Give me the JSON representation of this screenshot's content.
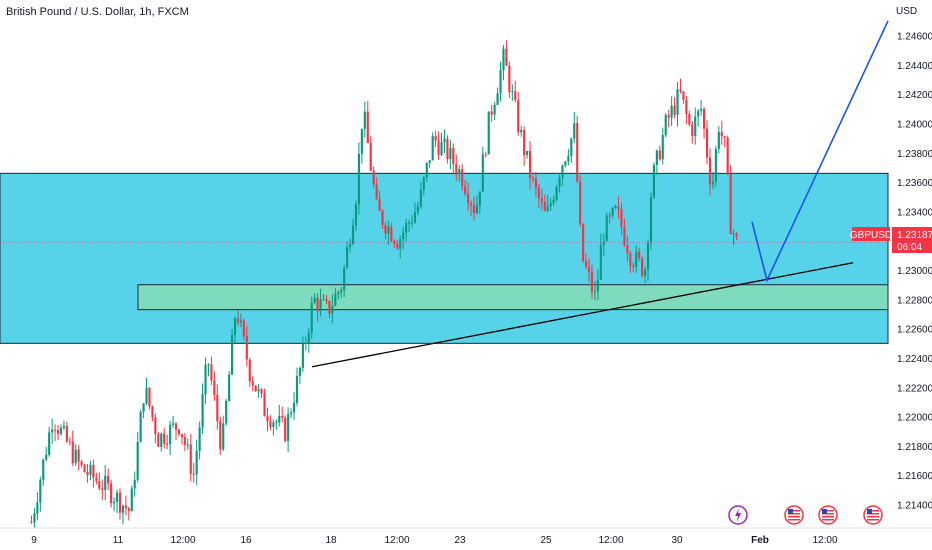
{
  "header": {
    "title": "British Pound / U.S. Dollar, 1h, FXCM"
  },
  "price_badge": {
    "symbol": "GBPUSD",
    "price": "1.23187",
    "countdown": "06:04",
    "color": "#f23645"
  },
  "colors": {
    "up": "#089981",
    "down": "#f23645",
    "zone_blue": "#56d3e8",
    "zone_green": "#7fdbbe",
    "trendline": "#000000",
    "projection": "#1e53e5"
  },
  "chart_data": {
    "type": "candlestick",
    "title": "British Pound / U.S. Dollar, 1h, FXCM",
    "currency": "USD",
    "ylim": [
      1.2124,
      1.2472
    ],
    "yticks": [
      "1.24600",
      "1.24400",
      "1.24200",
      "1.24000",
      "1.23800",
      "1.23600",
      "1.23400",
      "1.23200",
      "1.23000",
      "1.22800",
      "1.22600",
      "1.22400",
      "1.22200",
      "1.22000",
      "1.21800",
      "1.21600",
      "1.21400"
    ],
    "xticks": [
      "9",
      "11",
      "12:00",
      "16",
      "18",
      "12:00",
      "23",
      "25",
      "12:00",
      "30",
      "Feb",
      "12:00"
    ],
    "path": [
      [
        0.0,
        1.2128
      ],
      [
        0.03,
        1.22
      ],
      [
        0.07,
        1.2165
      ],
      [
        0.11,
        1.215
      ],
      [
        0.14,
        1.2135
      ],
      [
        0.16,
        1.222
      ],
      [
        0.18,
        1.2185
      ],
      [
        0.21,
        1.2195
      ],
      [
        0.23,
        1.216
      ],
      [
        0.25,
        1.224
      ],
      [
        0.27,
        1.2178
      ],
      [
        0.29,
        1.2275
      ],
      [
        0.31,
        1.223
      ],
      [
        0.33,
        1.2205
      ],
      [
        0.36,
        1.219
      ],
      [
        0.38,
        1.223
      ],
      [
        0.4,
        1.228
      ],
      [
        0.42,
        1.2272
      ],
      [
        0.44,
        1.229
      ],
      [
        0.46,
        1.235
      ],
      [
        0.47,
        1.241
      ],
      [
        0.49,
        1.234
      ],
      [
        0.52,
        1.232
      ],
      [
        0.55,
        1.2345
      ],
      [
        0.57,
        1.239
      ],
      [
        0.59,
        1.238
      ],
      [
        0.61,
        1.2365
      ],
      [
        0.63,
        1.234
      ],
      [
        0.65,
        1.2405
      ],
      [
        0.67,
        1.2445
      ],
      [
        0.69,
        1.24
      ],
      [
        0.71,
        1.236
      ],
      [
        0.73,
        1.2335
      ],
      [
        0.75,
        1.237
      ],
      [
        0.77,
        1.2395
      ],
      [
        0.78,
        1.231
      ],
      [
        0.8,
        1.228
      ],
      [
        0.81,
        1.2325
      ],
      [
        0.83,
        1.234
      ],
      [
        0.85,
        1.231
      ],
      [
        0.87,
        1.23
      ],
      [
        0.88,
        1.236
      ],
      [
        0.9,
        1.24
      ],
      [
        0.92,
        1.242
      ],
      [
        0.935,
        1.2395
      ],
      [
        0.95,
        1.241
      ],
      [
        0.965,
        1.2355
      ],
      [
        0.975,
        1.24
      ],
      [
        0.985,
        1.238
      ],
      [
        0.99,
        1.2335
      ],
      [
        1.0,
        1.23187
      ]
    ],
    "zones": [
      {
        "name": "resistance-zone",
        "from": 1.225,
        "to": 1.2366
      },
      {
        "name": "support-zone",
        "from": 1.2273,
        "to": 1.229
      }
    ],
    "trendline": {
      "from": [
        1.2234
      ],
      "to": [
        1.2305
      ]
    },
    "projection": [
      1.2333,
      1.2293,
      1.247
    ],
    "grid": false,
    "legend": "none"
  },
  "event_markers": [
    {
      "icon": "lightning-icon",
      "color": "#9c27b0"
    },
    {
      "icon": "us-flag-icon",
      "color": "#f23645"
    },
    {
      "icon": "us-flag-icon",
      "color": "#f23645"
    },
    {
      "icon": "us-flag-icon",
      "color": "#f23645"
    }
  ]
}
